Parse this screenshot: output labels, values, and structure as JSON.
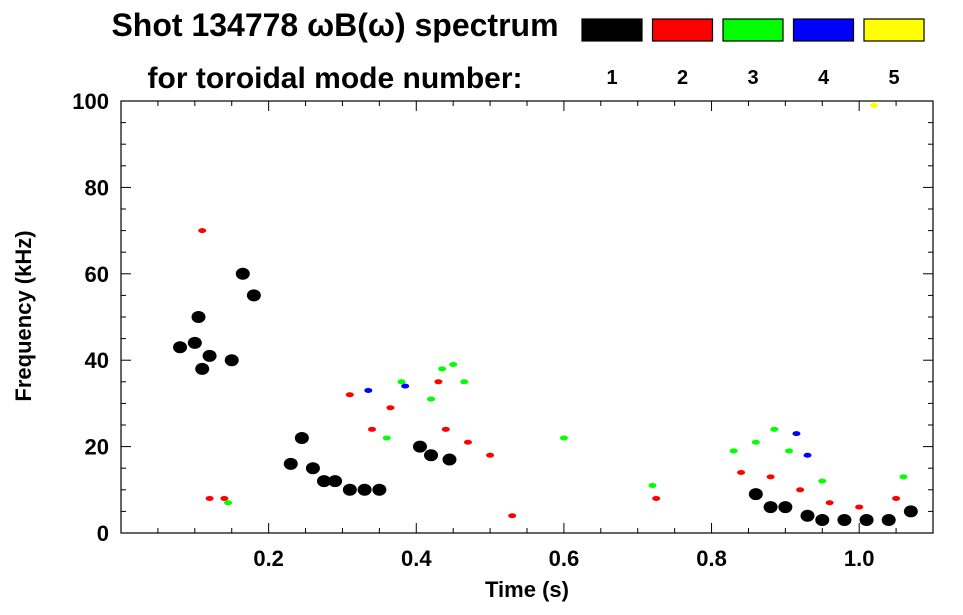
{
  "chart_data": {
    "type": "scatter",
    "title_line1": "Shot 134778 ωB(ω) spectrum",
    "title_line2": "for toroidal mode number:",
    "xlabel": "Time (s)",
    "ylabel": "Frequency (kHz)",
    "xlim": [
      0.0,
      1.1
    ],
    "ylim": [
      0,
      100
    ],
    "xticks": [
      0.2,
      0.4,
      0.6,
      0.8,
      1.0
    ],
    "xtick_labels": [
      "0.2",
      "0.4",
      "0.6",
      "0.8",
      "1.0"
    ],
    "yticks": [
      0,
      20,
      40,
      60,
      80,
      100
    ],
    "ytick_labels": [
      "0",
      "20",
      "40",
      "60",
      "80",
      "100"
    ],
    "grid": false,
    "legend_position": "top-right",
    "series": [
      {
        "name": "1",
        "color": "#000000",
        "points": [
          {
            "t": 0.08,
            "f": 43
          },
          {
            "t": 0.1,
            "f": 44
          },
          {
            "t": 0.105,
            "f": 50
          },
          {
            "t": 0.11,
            "f": 38
          },
          {
            "t": 0.12,
            "f": 41
          },
          {
            "t": 0.15,
            "f": 40
          },
          {
            "t": 0.165,
            "f": 60
          },
          {
            "t": 0.18,
            "f": 55
          },
          {
            "t": 0.23,
            "f": 16
          },
          {
            "t": 0.245,
            "f": 22
          },
          {
            "t": 0.26,
            "f": 15
          },
          {
            "t": 0.275,
            "f": 12
          },
          {
            "t": 0.29,
            "f": 12
          },
          {
            "t": 0.31,
            "f": 10
          },
          {
            "t": 0.33,
            "f": 10
          },
          {
            "t": 0.35,
            "f": 10
          },
          {
            "t": 0.405,
            "f": 20
          },
          {
            "t": 0.42,
            "f": 18
          },
          {
            "t": 0.445,
            "f": 17
          },
          {
            "t": 0.86,
            "f": 9
          },
          {
            "t": 0.88,
            "f": 6
          },
          {
            "t": 0.9,
            "f": 6
          },
          {
            "t": 0.93,
            "f": 4
          },
          {
            "t": 0.95,
            "f": 3
          },
          {
            "t": 0.98,
            "f": 3
          },
          {
            "t": 1.01,
            "f": 3
          },
          {
            "t": 1.04,
            "f": 3
          },
          {
            "t": 1.07,
            "f": 5
          }
        ]
      },
      {
        "name": "2",
        "color": "#ff0000",
        "points": [
          {
            "t": 0.11,
            "f": 70
          },
          {
            "t": 0.12,
            "f": 8
          },
          {
            "t": 0.14,
            "f": 8
          },
          {
            "t": 0.31,
            "f": 32
          },
          {
            "t": 0.34,
            "f": 24
          },
          {
            "t": 0.365,
            "f": 29
          },
          {
            "t": 0.43,
            "f": 35
          },
          {
            "t": 0.44,
            "f": 24
          },
          {
            "t": 0.47,
            "f": 21
          },
          {
            "t": 0.5,
            "f": 18
          },
          {
            "t": 0.53,
            "f": 4
          },
          {
            "t": 0.725,
            "f": 8
          },
          {
            "t": 0.84,
            "f": 14
          },
          {
            "t": 0.88,
            "f": 13
          },
          {
            "t": 0.92,
            "f": 10
          },
          {
            "t": 0.96,
            "f": 7
          },
          {
            "t": 1.0,
            "f": 6
          },
          {
            "t": 1.05,
            "f": 8
          }
        ]
      },
      {
        "name": "3",
        "color": "#00ff00",
        "points": [
          {
            "t": 0.145,
            "f": 7
          },
          {
            "t": 0.38,
            "f": 35
          },
          {
            "t": 0.42,
            "f": 31
          },
          {
            "t": 0.435,
            "f": 38
          },
          {
            "t": 0.45,
            "f": 39
          },
          {
            "t": 0.465,
            "f": 35
          },
          {
            "t": 0.36,
            "f": 22
          },
          {
            "t": 0.6,
            "f": 22
          },
          {
            "t": 0.72,
            "f": 11
          },
          {
            "t": 0.83,
            "f": 19
          },
          {
            "t": 0.86,
            "f": 21
          },
          {
            "t": 0.885,
            "f": 24
          },
          {
            "t": 0.905,
            "f": 19
          },
          {
            "t": 0.95,
            "f": 12
          },
          {
            "t": 1.06,
            "f": 13
          }
        ]
      },
      {
        "name": "4",
        "color": "#0000ff",
        "points": [
          {
            "t": 0.335,
            "f": 33
          },
          {
            "t": 0.385,
            "f": 34
          },
          {
            "t": 0.915,
            "f": 23
          },
          {
            "t": 0.93,
            "f": 18
          }
        ]
      },
      {
        "name": "5",
        "color": "#ffff00",
        "points": [
          {
            "t": 1.02,
            "f": 99
          }
        ]
      }
    ]
  }
}
